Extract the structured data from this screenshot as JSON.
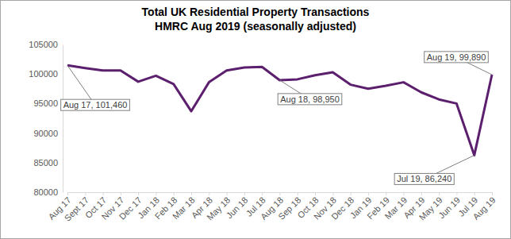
{
  "chart_data": {
    "type": "line",
    "title": "Total UK Residential Property Transactions",
    "subtitle": "HMRC Aug 2019 (seasonally adjusted)",
    "categories": [
      "Aug 17",
      "Sept 17",
      "Oct 17",
      "Nov 17",
      "Dec 17",
      "Jan 18",
      "Feb 18",
      "Mar 18",
      "Apr 18",
      "May 18",
      "Jun 18",
      "Jul 18",
      "Aug 18",
      "Sep 18",
      "Oct 18",
      "Nov 18",
      "Dec 18",
      "Jan 19",
      "Feb 19",
      "Mar 19",
      "Apr 19",
      "May 19",
      "Jun 19",
      "Jul 19",
      "Aug 19"
    ],
    "values": [
      101460,
      101000,
      100600,
      100600,
      98700,
      99700,
      98300,
      93700,
      98600,
      100600,
      101100,
      101200,
      98950,
      99100,
      99800,
      100300,
      98200,
      97500,
      98000,
      98600,
      96900,
      95700,
      95000,
      86240,
      99890
    ],
    "color": "#5c1f6e",
    "ylim": [
      80000,
      105000
    ],
    "yticks": [
      80000,
      85000,
      90000,
      95000,
      100000,
      105000
    ],
    "grid": false,
    "annotations": [
      {
        "x": "Aug 17",
        "y": 101460,
        "text": "Aug 17, 101,460"
      },
      {
        "x": "Aug 18",
        "y": 98950,
        "text": "Aug 18, 98,950"
      },
      {
        "x": "Jul 19",
        "y": 86240,
        "text": "Jul 19, 86,240"
      },
      {
        "x": "Aug 19",
        "y": 99890,
        "text": "Aug 19, 99,890"
      }
    ]
  }
}
